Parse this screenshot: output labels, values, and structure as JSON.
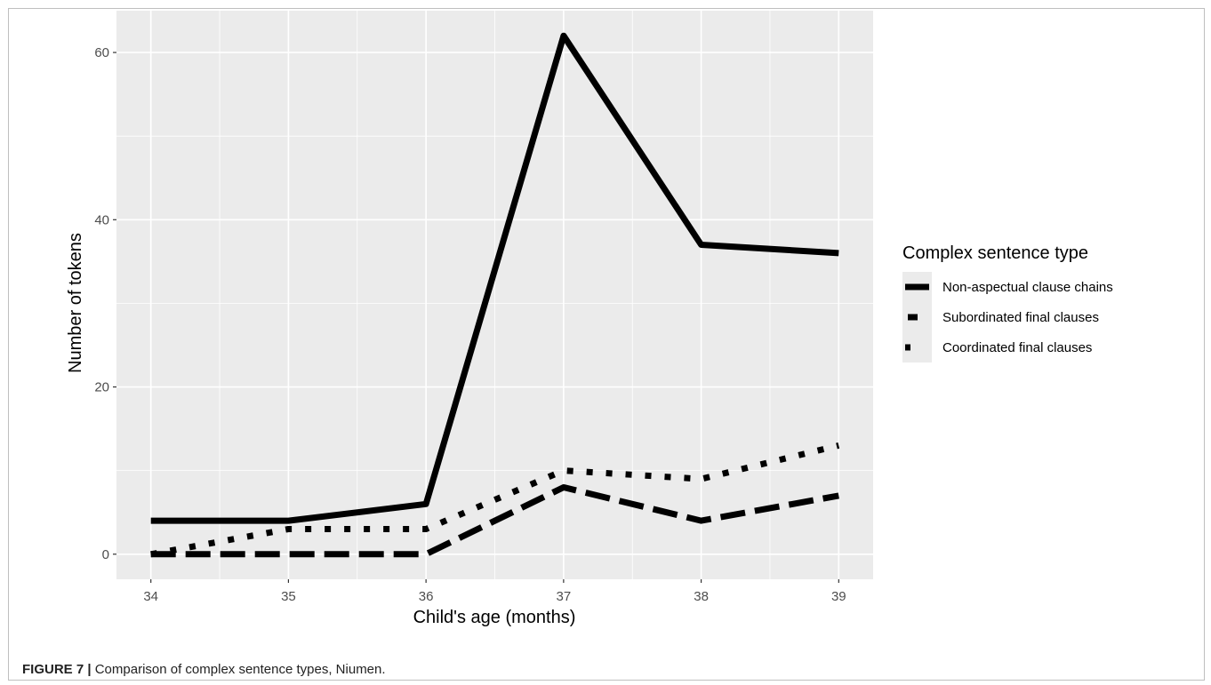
{
  "chart_data": {
    "type": "line",
    "xlabel": "Child's age (months)",
    "ylabel": "Number of tokens",
    "x": [
      34,
      35,
      36,
      37,
      38,
      39
    ],
    "xlim": [
      33.75,
      39.25
    ],
    "ylim": [
      -3,
      65
    ],
    "x_ticks": [
      "34",
      "35",
      "36",
      "37",
      "38",
      "39"
    ],
    "y_ticks": [
      "0",
      "20",
      "40",
      "60"
    ],
    "y_tick_values": [
      0,
      20,
      40,
      60
    ],
    "grid": true,
    "legend": {
      "title": "Complex sentence type",
      "position": "right"
    },
    "series": [
      {
        "name": "Non-aspectual clause chains",
        "values": [
          4,
          4,
          6,
          62,
          37,
          36
        ],
        "style": "solid"
      },
      {
        "name": "Subordinated final clauses",
        "values": [
          0,
          0,
          0,
          8,
          4,
          7
        ],
        "style": "dashed"
      },
      {
        "name": "Coordinated final clauses",
        "values": [
          0,
          3,
          3,
          10,
          9,
          13
        ],
        "style": "dotted"
      }
    ],
    "colors": {
      "panel": "#ebebeb",
      "grid": "#ffffff",
      "line": "#000000",
      "text": "#4d4d4d"
    }
  },
  "caption": {
    "label": "FIGURE 7 |",
    "text": " Comparison of complex sentence types, Niumen."
  }
}
